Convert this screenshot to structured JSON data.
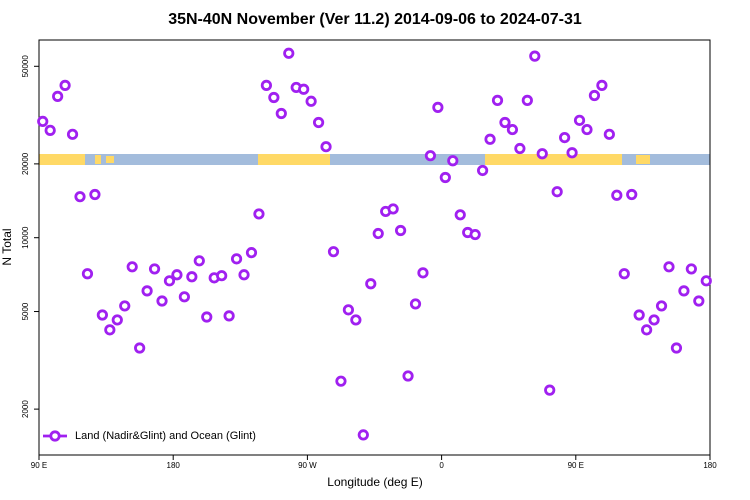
{
  "chart_data": {
    "type": "scatter",
    "title": "35N-40N November (Ver 11.2)   2014-09-06 to 2024-07-31",
    "xlabel": "Longitude (deg E)",
    "ylabel": "N Total",
    "log_y": true,
    "legend": "lower left",
    "xlim": [
      90,
      540
    ],
    "xticks": [
      {
        "value": 90,
        "label": "90 E"
      },
      {
        "value": 180,
        "label": "180"
      },
      {
        "value": 270,
        "label": "90 W"
      },
      {
        "value": 360,
        "label": "0"
      },
      {
        "value": 450,
        "label": "90 E"
      },
      {
        "value": 540,
        "label": "180"
      }
    ],
    "ylim": [
      1300,
      64000
    ],
    "yticks": [
      2000,
      5000,
      10000,
      20000,
      50000
    ],
    "x": [
      92.5,
      97.5,
      102.5,
      107.5,
      112.5,
      117.5,
      122.5,
      127.5,
      132.5,
      137.5,
      142.5,
      147.5,
      152.5,
      157.5,
      162.5,
      167.5,
      172.5,
      177.5,
      182.5,
      187.5,
      192.5,
      197.5,
      202.5,
      207.5,
      212.5,
      217.5,
      222.5,
      227.5,
      232.5,
      237.5,
      242.5,
      247.5,
      252.5,
      257.5,
      262.5,
      267.5,
      272.5,
      277.5,
      282.5,
      287.5,
      292.5,
      297.5,
      302.5,
      307.5,
      312.5,
      317.5,
      322.5,
      327.5,
      332.5,
      337.5,
      342.5,
      347.5,
      352.5,
      357.5,
      362.5,
      367.5,
      372.5,
      377.5,
      382.5,
      387.5,
      392.5,
      397.5,
      402.5,
      407.5,
      412.5,
      417.5,
      422.5,
      427.5,
      432.5,
      437.5,
      442.5,
      447.5,
      452.5,
      457.5,
      462.5,
      467.5,
      472.5,
      477.5,
      482.5,
      487.5,
      492.5,
      497.5,
      502.5,
      507.5,
      512.5,
      517.5,
      522.5,
      527.5,
      532.5,
      537.5
    ],
    "series": [
      {
        "name": "Land (Nadir&Glint) and Ocean (Glint)",
        "color": "#a020f0",
        "values": [
          29800,
          27400,
          37700,
          41800,
          26400,
          14700,
          7130,
          15000,
          4840,
          4210,
          4620,
          5270,
          7610,
          3550,
          6070,
          7460,
          5520,
          6670,
          7060,
          5740,
          6930,
          8050,
          4750,
          6860,
          7000,
          4800,
          8200,
          7060,
          8690,
          12500,
          41800,
          37300,
          32100,
          56500,
          41000,
          40300,
          36000,
          29500,
          23500,
          8770,
          2600,
          5080,
          4620,
          1570,
          6490,
          10400,
          12800,
          13100,
          10700,
          2730,
          5370,
          7190,
          21600,
          34000,
          17600,
          20600,
          12400,
          10500,
          10300,
          18800,
          25200,
          36300,
          29500,
          27600,
          23100,
          36300,
          55000,
          22000,
          2390,
          15400,
          25600,
          22200,
          30100,
          27600,
          38000,
          41800,
          26400,
          14900,
          7130,
          15000,
          4840,
          4210,
          4620,
          5270,
          7610,
          3550,
          6070,
          7460,
          5520,
          6670
        ]
      }
    ]
  }
}
